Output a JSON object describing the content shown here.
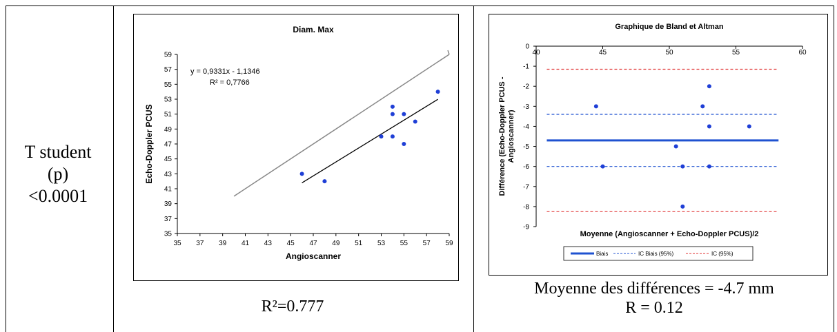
{
  "left_cell": {
    "lines": [
      "T student",
      "(p)",
      "<0.0001"
    ]
  },
  "middle_caption": "R²=0.777",
  "right_caption": {
    "line1": "Moyenne des différences = -4.7 mm",
    "line2": "R = 0.12"
  },
  "colors": {
    "points": "#1f3fd6",
    "identity": "#888888",
    "trend": "#000000",
    "bias": "#1f52d0",
    "ci_bias": "#1f52d0",
    "ci": "#e03030"
  },
  "chart_data": [
    {
      "type": "scatter",
      "title": "Diam. Max",
      "xlabel": "Angioscanner",
      "ylabel": "Echo-Doppler PCUS",
      "xlim": [
        35,
        59
      ],
      "ylim": [
        35,
        59
      ],
      "x_ticks": [
        35,
        37,
        39,
        41,
        43,
        45,
        47,
        49,
        51,
        53,
        55,
        57,
        59
      ],
      "y_ticks": [
        35,
        37,
        39,
        41,
        43,
        45,
        47,
        49,
        51,
        53,
        55,
        57,
        59
      ],
      "points": [
        {
          "x": 46,
          "y": 43
        },
        {
          "x": 48,
          "y": 42
        },
        {
          "x": 53,
          "y": 48
        },
        {
          "x": 54,
          "y": 48
        },
        {
          "x": 54,
          "y": 51
        },
        {
          "x": 54,
          "y": 52
        },
        {
          "x": 55,
          "y": 51
        },
        {
          "x": 55,
          "y": 47
        },
        {
          "x": 56,
          "y": 50
        },
        {
          "x": 58,
          "y": 54
        }
      ],
      "identity_line": {
        "from": [
          40,
          40
        ],
        "to": [
          60,
          60
        ]
      },
      "trendline": {
        "slope": 0.9331,
        "intercept": -1.1346,
        "x_range": [
          46,
          58
        ]
      },
      "equation_label": "y = 0,9331x - 1,1346",
      "r2_label": "R² = 0,7766",
      "grid": false
    },
    {
      "type": "scatter",
      "title": "Graphique de Bland et Altman",
      "xlabel": "Moyenne (Angioscanner + Echo-Doppler PCUS)/2",
      "ylabel": "Différence (Echo-Doppler PCUS - Angioscanner)",
      "xlim": [
        40,
        60
      ],
      "ylim": [
        -9,
        0
      ],
      "x_ticks": [
        40,
        45,
        50,
        55,
        60
      ],
      "y_ticks": [
        0,
        -1,
        -2,
        -3,
        -4,
        -5,
        -6,
        -7,
        -8,
        -9
      ],
      "points": [
        {
          "x": 44.5,
          "y": -3
        },
        {
          "x": 45,
          "y": -6
        },
        {
          "x": 50.5,
          "y": -5
        },
        {
          "x": 51,
          "y": -6
        },
        {
          "x": 51,
          "y": -8
        },
        {
          "x": 52.5,
          "y": -3
        },
        {
          "x": 53,
          "y": -2
        },
        {
          "x": 53,
          "y": -4
        },
        {
          "x": 53,
          "y": -6
        },
        {
          "x": 56,
          "y": -4
        }
      ],
      "series": [
        {
          "name": "Biais",
          "y": -4.7,
          "style": "solid"
        },
        {
          "name": "IC Biais (95%)",
          "y_values": [
            -3.4,
            -6.0
          ],
          "style": "dashed"
        },
        {
          "name": "IC (95%)",
          "y_values": [
            -1.15,
            -8.25
          ],
          "style": "dashed"
        }
      ],
      "legend_position": "bottom",
      "grid": false
    }
  ]
}
